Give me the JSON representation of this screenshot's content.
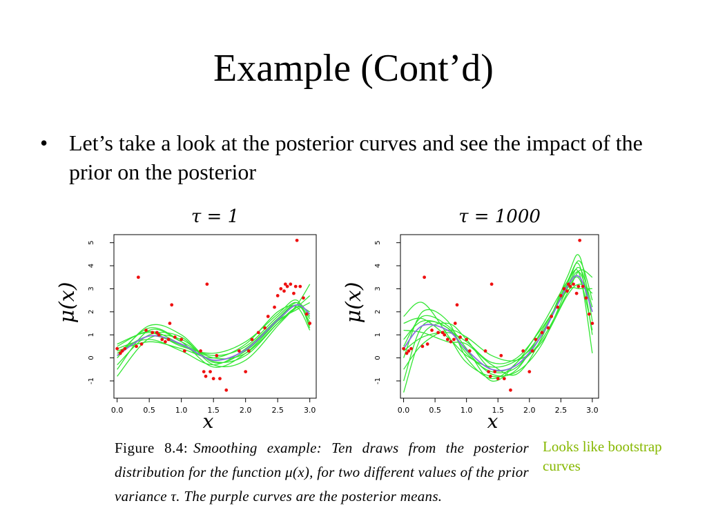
{
  "slide": {
    "title": "Example (Cont’d)",
    "bullet_marker": "•",
    "bullet_text": "Let’s take a look at the posterior curves and see the impact of the prior on the posterior"
  },
  "figure": {
    "caption_label": "Figure 8.4:",
    "caption_text": "Smoothing example: Ten draws from the posterior distribution for the function μ(x), for two different values of the prior variance τ. The purple curves are the posterior means.",
    "note": "Looks like bootstrap curves",
    "colors": {
      "draws": "#33e633",
      "mean": "#8a6be0",
      "points": "#ee1111",
      "axis": "#000000"
    }
  },
  "chart_data": [
    {
      "type": "line",
      "title": "τ = 1",
      "xlabel": "x",
      "ylabel": "μ(x)",
      "xlim": [
        -0.05,
        3.1
      ],
      "ylim": [
        -1.75,
        5.35
      ],
      "xticks": [
        "0.0",
        "0.5",
        "1.0",
        "1.5",
        "2.0",
        "2.5",
        "3.0"
      ],
      "yticks": [
        "-1",
        "0",
        "1",
        "2",
        "3",
        "4",
        "5"
      ],
      "grid": false,
      "scatter": {
        "x": [
          0.0,
          0.05,
          0.08,
          0.12,
          0.3,
          0.33,
          0.38,
          0.45,
          0.55,
          0.62,
          0.65,
          0.7,
          0.75,
          0.8,
          0.82,
          0.85,
          0.9,
          1.0,
          1.05,
          1.3,
          1.35,
          1.38,
          1.4,
          1.45,
          1.5,
          1.55,
          1.6,
          1.7,
          1.9,
          2.0,
          2.05,
          2.1,
          2.2,
          2.3,
          2.35,
          2.45,
          2.5,
          2.55,
          2.6,
          2.62,
          2.65,
          2.7,
          2.75,
          2.78,
          2.8,
          2.85,
          2.9,
          2.95,
          3.0
        ],
        "y": [
          0.4,
          0.2,
          0.3,
          0.4,
          0.5,
          3.5,
          0.6,
          1.2,
          1.1,
          1.1,
          1.0,
          0.8,
          0.7,
          0.8,
          1.5,
          2.3,
          0.9,
          0.8,
          0.3,
          0.3,
          -0.6,
          -0.8,
          3.2,
          -0.6,
          -0.9,
          0.1,
          -0.9,
          -1.4,
          0.3,
          -0.6,
          0.3,
          0.8,
          1.1,
          1.3,
          1.8,
          2.2,
          2.7,
          3.0,
          2.9,
          3.2,
          3.1,
          3.2,
          2.8,
          3.1,
          5.1,
          3.1,
          2.6,
          1.9,
          1.5
        ]
      },
      "series": [
        {
          "x": [
            0.0,
            0.5,
            1.0,
            1.5,
            2.0,
            2.5,
            2.8,
            3.0
          ],
          "y": [
            0.2,
            0.95,
            0.55,
            -0.1,
            0.35,
            1.7,
            2.3,
            1.55
          ]
        },
        {
          "x": [
            0.0,
            0.5,
            1.0,
            1.5,
            2.0,
            2.5,
            2.8,
            3.0
          ],
          "y": [
            -0.8,
            0.85,
            0.8,
            -0.15,
            0.1,
            1.5,
            2.2,
            2.0
          ]
        },
        {
          "x": [
            0.0,
            0.5,
            1.0,
            1.5,
            2.0,
            2.5,
            2.8,
            3.0
          ],
          "y": [
            0.5,
            1.15,
            0.6,
            0.1,
            0.5,
            1.8,
            2.4,
            1.4
          ]
        },
        {
          "x": [
            0.0,
            0.5,
            1.0,
            1.5,
            2.0,
            2.5,
            2.8,
            3.0
          ],
          "y": [
            0.1,
            1.3,
            0.7,
            -0.4,
            0.2,
            1.6,
            2.3,
            1.7
          ]
        },
        {
          "x": [
            0.0,
            0.5,
            1.0,
            1.5,
            2.0,
            2.5,
            2.8,
            3.0
          ],
          "y": [
            0.3,
            0.7,
            0.4,
            0.0,
            0.6,
            2.0,
            2.2,
            1.2
          ]
        },
        {
          "x": [
            0.0,
            0.5,
            1.0,
            1.5,
            2.0,
            2.5,
            2.8,
            3.0
          ],
          "y": [
            -0.3,
            1.0,
            0.9,
            -0.3,
            -0.1,
            1.4,
            2.3,
            3.2
          ]
        },
        {
          "x": [
            0.0,
            0.5,
            1.0,
            1.5,
            2.0,
            2.5,
            2.8,
            3.0
          ],
          "y": [
            0.6,
            1.1,
            0.5,
            0.2,
            0.7,
            1.9,
            2.5,
            1.3
          ]
        },
        {
          "x": [
            0.0,
            0.5,
            1.0,
            1.5,
            2.0,
            2.5,
            2.8,
            3.0
          ],
          "y": [
            0.0,
            1.4,
            1.0,
            -0.2,
            0.3,
            1.6,
            2.1,
            2.4
          ]
        },
        {
          "x": [
            0.0,
            0.5,
            1.0,
            1.5,
            2.0,
            2.5,
            2.8,
            3.0
          ],
          "y": [
            0.4,
            0.8,
            0.3,
            -0.3,
            0.4,
            1.7,
            2.4,
            1.8
          ]
        },
        {
          "x": [
            0.0,
            0.5,
            1.0,
            1.5,
            2.0,
            2.5,
            2.8,
            3.0
          ],
          "y": [
            -0.5,
            1.2,
            0.7,
            0.0,
            0.2,
            1.5,
            2.2,
            2.7
          ]
        }
      ],
      "mean": {
        "x": [
          0.0,
          0.5,
          1.0,
          1.5,
          2.0,
          2.5,
          2.8,
          3.0
        ],
        "y": [
          0.1,
          0.95,
          0.6,
          -0.1,
          0.35,
          1.65,
          2.3,
          1.9
        ]
      }
    },
    {
      "type": "line",
      "title": "τ = 1000",
      "xlabel": "x",
      "ylabel": "μ(x)",
      "xlim": [
        -0.05,
        3.1
      ],
      "ylim": [
        -1.75,
        5.35
      ],
      "xticks": [
        "0.0",
        "0.5",
        "1.0",
        "1.5",
        "2.0",
        "2.5",
        "3.0"
      ],
      "yticks": [
        "-1",
        "0",
        "1",
        "2",
        "3",
        "4",
        "5"
      ],
      "grid": false,
      "scatter": {
        "x": [
          0.0,
          0.05,
          0.08,
          0.12,
          0.3,
          0.33,
          0.38,
          0.45,
          0.55,
          0.62,
          0.65,
          0.7,
          0.75,
          0.8,
          0.82,
          0.85,
          0.9,
          1.0,
          1.05,
          1.3,
          1.35,
          1.38,
          1.4,
          1.45,
          1.5,
          1.55,
          1.6,
          1.7,
          1.9,
          2.0,
          2.05,
          2.1,
          2.2,
          2.3,
          2.35,
          2.45,
          2.5,
          2.55,
          2.6,
          2.62,
          2.65,
          2.7,
          2.75,
          2.78,
          2.8,
          2.85,
          2.9,
          2.95,
          3.0
        ],
        "y": [
          0.4,
          0.2,
          0.3,
          0.4,
          0.5,
          3.5,
          0.6,
          1.2,
          1.1,
          1.1,
          1.0,
          0.8,
          0.7,
          0.8,
          1.5,
          2.3,
          0.9,
          0.8,
          0.3,
          0.3,
          -0.6,
          -0.8,
          3.2,
          -0.6,
          -0.9,
          0.1,
          -0.9,
          -1.4,
          0.3,
          -0.6,
          0.3,
          0.8,
          1.1,
          1.3,
          1.8,
          2.2,
          2.7,
          3.0,
          2.9,
          3.2,
          3.1,
          3.2,
          2.8,
          3.1,
          5.1,
          3.1,
          2.6,
          1.9,
          1.5
        ]
      },
      "series": [
        {
          "x": [
            0.0,
            0.3,
            0.7,
            1.0,
            1.4,
            1.8,
            2.2,
            2.6,
            2.8,
            3.0
          ],
          "y": [
            0.8,
            1.6,
            1.3,
            0.2,
            -0.6,
            -0.4,
            1.0,
            3.2,
            4.2,
            2.5
          ]
        },
        {
          "x": [
            0.0,
            0.3,
            0.7,
            1.0,
            1.4,
            1.8,
            2.2,
            2.6,
            2.8,
            3.0
          ],
          "y": [
            -1.5,
            1.0,
            1.5,
            0.8,
            -0.5,
            -0.3,
            0.8,
            2.8,
            3.8,
            3.5
          ]
        },
        {
          "x": [
            0.0,
            0.3,
            0.7,
            1.0,
            1.4,
            1.8,
            2.2,
            2.6,
            2.8,
            3.0
          ],
          "y": [
            1.8,
            2.4,
            1.0,
            -0.2,
            -0.8,
            -0.5,
            1.2,
            3.0,
            3.4,
            1.2
          ]
        },
        {
          "x": [
            0.0,
            0.3,
            0.7,
            1.0,
            1.4,
            1.8,
            2.2,
            2.6,
            2.8,
            3.0
          ],
          "y": [
            0.5,
            1.8,
            1.4,
            0.4,
            -1.0,
            -0.2,
            1.4,
            3.3,
            3.6,
            0.2
          ]
        },
        {
          "x": [
            0.0,
            0.3,
            0.7,
            1.0,
            1.4,
            1.8,
            2.2,
            2.6,
            2.8,
            3.0
          ],
          "y": [
            -0.5,
            0.6,
            1.2,
            0.9,
            0.1,
            -0.1,
            0.7,
            2.7,
            3.2,
            2.8
          ]
        },
        {
          "x": [
            0.0,
            0.3,
            0.7,
            1.0,
            1.4,
            1.8,
            2.2,
            2.6,
            2.8,
            3.0
          ],
          "y": [
            1.2,
            1.1,
            0.7,
            0.6,
            -0.3,
            -0.7,
            0.9,
            3.5,
            4.4,
            1.6
          ]
        },
        {
          "x": [
            0.0,
            0.3,
            0.7,
            1.0,
            1.4,
            1.8,
            2.2,
            2.6,
            2.8,
            3.0
          ],
          "y": [
            0.0,
            2.0,
            1.6,
            0.0,
            -0.9,
            -0.2,
            1.1,
            3.1,
            3.9,
            2.2
          ]
        },
        {
          "x": [
            0.0,
            0.3,
            0.7,
            1.0,
            1.4,
            1.8,
            2.2,
            2.6,
            2.8,
            3.0
          ],
          "y": [
            0.3,
            0.9,
            1.1,
            0.7,
            -0.2,
            0.0,
            1.3,
            2.9,
            3.0,
            3.0
          ]
        },
        {
          "x": [
            0.0,
            0.3,
            0.7,
            1.0,
            1.4,
            1.8,
            2.2,
            2.6,
            2.8,
            3.0
          ],
          "y": [
            -1.0,
            1.4,
            1.3,
            0.3,
            -0.7,
            -0.6,
            0.6,
            3.0,
            3.7,
            2.0
          ]
        },
        {
          "x": [
            0.0,
            0.3,
            0.7,
            1.0,
            1.4,
            1.8,
            2.2,
            2.6,
            2.8,
            3.0
          ],
          "y": [
            1.5,
            1.7,
            0.9,
            0.1,
            -0.4,
            -0.1,
            1.0,
            3.3,
            4.0,
            1.0
          ]
        }
      ],
      "mean": {
        "x": [
          0.0,
          0.3,
          0.7,
          1.0,
          1.4,
          1.8,
          2.2,
          2.6,
          2.8,
          3.0
        ],
        "y": [
          0.4,
          1.4,
          1.2,
          0.35,
          -0.5,
          -0.3,
          1.0,
          3.1,
          3.5,
          2.0
        ]
      }
    }
  ]
}
